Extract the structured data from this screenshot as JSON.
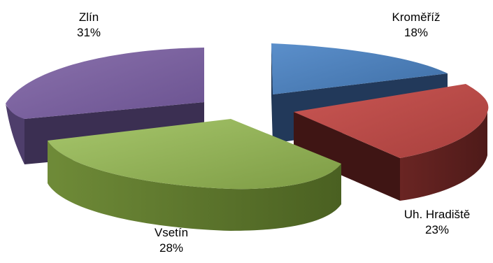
{
  "chart_data": {
    "type": "pie",
    "style": "3d-exploded",
    "categories": [
      "Kroměříž",
      "Uh. Hradiště",
      "Vsetín",
      "Zlín"
    ],
    "values": [
      18,
      23,
      28,
      31
    ],
    "value_labels": [
      "18%",
      "23%",
      "28%",
      "31%"
    ],
    "colors": [
      "#4F81BD",
      "#C0504D",
      "#9BBB59",
      "#8064A2"
    ],
    "side_colors": [
      "#22395A",
      "#5B1F1E",
      "#4C6323",
      "#3C2E55"
    ],
    "title": "",
    "legend": "none"
  }
}
